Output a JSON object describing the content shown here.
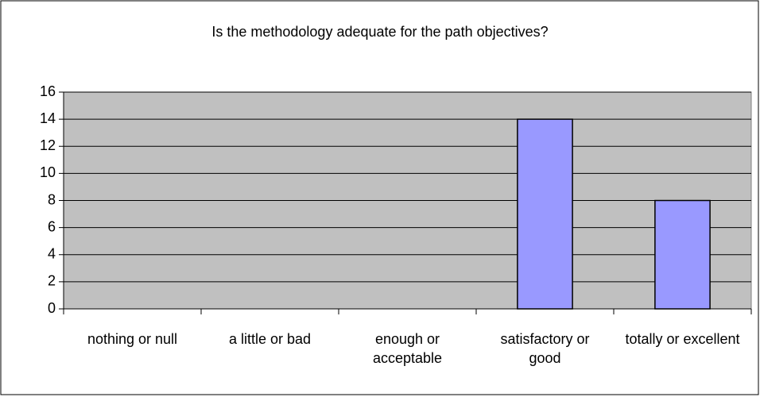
{
  "chart_data": {
    "type": "bar",
    "title": "Is the methodology adequate for the path objectives?",
    "categories": [
      "nothing or null",
      "a little or bad",
      "enough or acceptable",
      "satisfactory or good",
      "totally or excellent"
    ],
    "values": [
      0,
      0,
      0,
      14,
      8
    ],
    "color": "#9999ff",
    "ylim": [
      0,
      16
    ],
    "yticks": [
      0,
      2,
      4,
      6,
      8,
      10,
      12,
      14,
      16
    ],
    "grid": true
  }
}
